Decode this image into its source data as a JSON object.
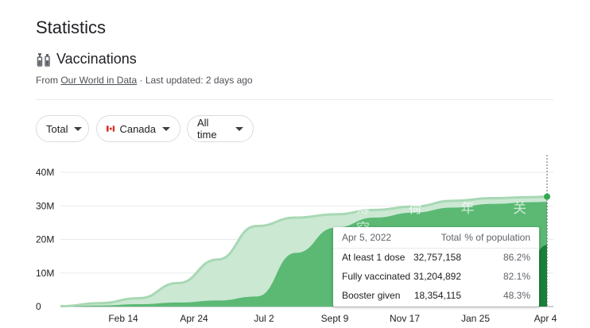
{
  "header": {
    "title": "Statistics",
    "subtitle": "Vaccinations",
    "source_prefix": "From ",
    "source_link": "Our World in Data",
    "source_suffix": " · Last updated: 2 days ago"
  },
  "filters": {
    "metric": "Total",
    "country": "Canada",
    "range": "All time"
  },
  "colors": {
    "first_dose": "#cbe8d3",
    "first_dose_line": "#a8d8b4",
    "fully": "#5bb974",
    "booster": "#188038",
    "marker": "#34a853"
  },
  "tooltip": {
    "date": "Apr 5, 2022",
    "col_total": "Total",
    "col_pct": "% of population",
    "rows": [
      {
        "label": "At least 1 dose",
        "total": "32,757,158",
        "pct": "86.2%"
      },
      {
        "label": "Fully vaccinated",
        "total": "31,204,892",
        "pct": "82.1%"
      },
      {
        "label": "Booster given",
        "total": "18,354,115",
        "pct": "48.3%"
      }
    ]
  },
  "watermark": "薄 荷 年 关 空",
  "chart_data": {
    "type": "area",
    "x_ticks": [
      "Feb 14",
      "Apr 24",
      "Jul 2",
      "Sept 9",
      "Nov 17",
      "Jan 25",
      "Apr 4"
    ],
    "y_ticks": [
      "40M",
      "30M",
      "20M",
      "10M",
      "0"
    ],
    "ylim": [
      0,
      40
    ],
    "x": [
      0,
      0.5,
      1,
      1.5,
      2,
      2.5,
      3,
      3.5,
      4,
      4.5,
      5,
      5.5,
      6,
      6.2
    ],
    "series": [
      {
        "name": "At least 1 dose",
        "values": [
          0.1,
          1,
          2.5,
          7,
          14,
          24,
          26.5,
          27.5,
          28.8,
          29.8,
          31.5,
          32.3,
          32.6,
          32.76
        ]
      },
      {
        "name": "Fully vaccinated",
        "values": [
          0,
          0.3,
          0.7,
          1.2,
          1.8,
          3,
          16,
          23.5,
          26.5,
          28,
          29.5,
          30.6,
          31.1,
          31.2
        ]
      },
      {
        "name": "Booster given",
        "values": [
          0,
          0,
          0,
          0,
          0,
          0,
          0,
          0,
          0,
          0,
          0,
          1,
          15,
          18.35
        ]
      }
    ]
  }
}
